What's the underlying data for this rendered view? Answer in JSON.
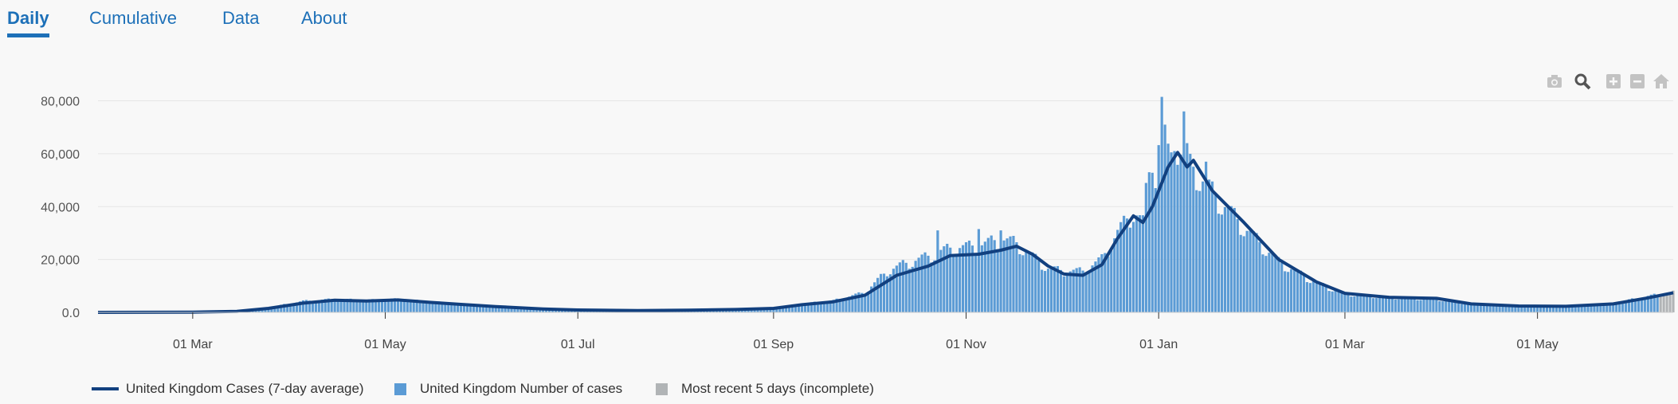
{
  "tabs": {
    "daily": "Daily",
    "cumulative": "Cumulative",
    "data": "Data",
    "about": "About"
  },
  "toolbar": [
    "camera-icon",
    "zoom-icon",
    "zoom-in-icon",
    "zoom-out-icon",
    "home-icon"
  ],
  "legend": {
    "avg": "United Kingdom Cases (7-day average)",
    "cases": "United Kingdom Number of cases",
    "recent": "Most recent 5 days (incomplete)"
  },
  "colors": {
    "avg_line": "#12407f",
    "bars": "#5b9bd5",
    "recent": "#b1b4b6",
    "tab_accent": "#1d70b8"
  },
  "chart_data": {
    "type": "bar",
    "title": "",
    "xlabel": "",
    "ylabel": "",
    "x_start": "2020-01-31",
    "x_end": "2021-06-13",
    "ylim": [
      0,
      88000
    ],
    "y_ticks": [
      {
        "value": 0,
        "label": "0.0"
      },
      {
        "value": 20000,
        "label": "20,000"
      },
      {
        "value": 40000,
        "label": "40,000"
      },
      {
        "value": 60000,
        "label": "60,000"
      },
      {
        "value": 80000,
        "label": "80,000"
      }
    ],
    "x_ticks": [
      {
        "date": "2020-03-01",
        "label": "01 Mar"
      },
      {
        "date": "2020-05-01",
        "label": "01 May"
      },
      {
        "date": "2020-07-01",
        "label": "01 Jul"
      },
      {
        "date": "2020-09-01",
        "label": "01 Sep"
      },
      {
        "date": "2020-11-01",
        "label": "01 Nov"
      },
      {
        "date": "2021-01-01",
        "label": "01 Jan"
      },
      {
        "date": "2021-03-01",
        "label": "01 Mar"
      },
      {
        "date": "2021-05-01",
        "label": "01 May"
      }
    ],
    "grid": true,
    "legend_position": "bottom-left",
    "incomplete_days": 5,
    "series": [
      {
        "name": "United Kingdom Cases (7-day average)",
        "type": "line",
        "points": [
          [
            "2020-01-31",
            0
          ],
          [
            "2020-03-01",
            50
          ],
          [
            "2020-03-15",
            400
          ],
          [
            "2020-03-25",
            1500
          ],
          [
            "2020-04-05",
            3500
          ],
          [
            "2020-04-15",
            4600
          ],
          [
            "2020-04-25",
            4300
          ],
          [
            "2020-05-05",
            4700
          ],
          [
            "2020-05-15",
            3800
          ],
          [
            "2020-05-25",
            3000
          ],
          [
            "2020-06-05",
            2200
          ],
          [
            "2020-06-20",
            1300
          ],
          [
            "2020-07-01",
            900
          ],
          [
            "2020-07-20",
            650
          ],
          [
            "2020-08-05",
            800
          ],
          [
            "2020-08-20",
            1100
          ],
          [
            "2020-09-01",
            1500
          ],
          [
            "2020-09-10",
            2900
          ],
          [
            "2020-09-20",
            4000
          ],
          [
            "2020-09-30",
            6500
          ],
          [
            "2020-10-10",
            14000
          ],
          [
            "2020-10-20",
            17500
          ],
          [
            "2020-10-27",
            21500
          ],
          [
            "2020-11-05",
            22000
          ],
          [
            "2020-11-12",
            23500
          ],
          [
            "2020-11-17",
            25000
          ],
          [
            "2020-11-22",
            22000
          ],
          [
            "2020-11-27",
            17500
          ],
          [
            "2020-12-02",
            14500
          ],
          [
            "2020-12-08",
            14000
          ],
          [
            "2020-12-14",
            18000
          ],
          [
            "2020-12-19",
            28000
          ],
          [
            "2020-12-24",
            36500
          ],
          [
            "2020-12-27",
            34000
          ],
          [
            "2020-12-30",
            40000
          ],
          [
            "2021-01-04",
            55000
          ],
          [
            "2021-01-07",
            60500
          ],
          [
            "2021-01-10",
            55000
          ],
          [
            "2021-01-12",
            57500
          ],
          [
            "2021-01-18",
            46000
          ],
          [
            "2021-01-28",
            34000
          ],
          [
            "2021-02-08",
            20000
          ],
          [
            "2021-02-20",
            11500
          ],
          [
            "2021-03-01",
            7200
          ],
          [
            "2021-03-15",
            5700
          ],
          [
            "2021-03-30",
            5300
          ],
          [
            "2021-04-10",
            3200
          ],
          [
            "2021-04-25",
            2400
          ],
          [
            "2021-05-10",
            2300
          ],
          [
            "2021-05-25",
            3200
          ],
          [
            "2021-06-05",
            5500
          ],
          [
            "2021-06-13",
            7400
          ]
        ]
      },
      {
        "name": "United Kingdom Number of cases",
        "type": "bar",
        "daily_envelope": [
          [
            "2020-01-31",
            0
          ],
          [
            "2020-03-01",
            70
          ],
          [
            "2020-03-15",
            500
          ],
          [
            "2020-03-25",
            1800
          ],
          [
            "2020-04-05",
            4200
          ],
          [
            "2020-04-15",
            4900
          ],
          [
            "2020-04-25",
            4500
          ],
          [
            "2020-05-05",
            4900
          ],
          [
            "2020-05-15",
            4000
          ],
          [
            "2020-05-25",
            3200
          ],
          [
            "2020-06-05",
            2300
          ],
          [
            "2020-06-20",
            1350
          ],
          [
            "2020-07-01",
            900
          ],
          [
            "2020-07-20",
            650
          ],
          [
            "2020-08-05",
            850
          ],
          [
            "2020-08-20",
            1150
          ],
          [
            "2020-09-01",
            1600
          ],
          [
            "2020-09-10",
            3200
          ],
          [
            "2020-09-20",
            4400
          ],
          [
            "2020-09-30",
            7500
          ],
          [
            "2020-10-07",
            15500
          ],
          [
            "2020-10-12",
            18000
          ],
          [
            "2020-10-20",
            21000
          ],
          [
            "2020-10-27",
            24000
          ],
          [
            "2020-11-05",
            25000
          ],
          [
            "2020-11-12",
            27500
          ],
          [
            "2020-11-17",
            26000
          ],
          [
            "2020-11-22",
            21000
          ],
          [
            "2020-11-27",
            16500
          ],
          [
            "2020-12-02",
            15500
          ],
          [
            "2020-12-08",
            15500
          ],
          [
            "2020-12-14",
            20000
          ],
          [
            "2020-12-19",
            30000
          ],
          [
            "2020-12-24",
            38000
          ],
          [
            "2020-12-27",
            34000
          ],
          [
            "2020-12-29",
            55000
          ],
          [
            "2020-12-31",
            65000
          ],
          [
            "2021-01-04",
            58000
          ],
          [
            "2021-01-07",
            62000
          ],
          [
            "2021-01-10",
            55000
          ],
          [
            "2021-01-12",
            54000
          ],
          [
            "2021-01-18",
            45000
          ],
          [
            "2021-01-28",
            32000
          ],
          [
            "2021-02-08",
            19000
          ],
          [
            "2021-02-20",
            11000
          ],
          [
            "2021-03-01",
            7000
          ],
          [
            "2021-03-15",
            5600
          ],
          [
            "2021-03-30",
            5000
          ],
          [
            "2021-04-10",
            3000
          ],
          [
            "2021-04-25",
            2300
          ],
          [
            "2021-05-10",
            2300
          ],
          [
            "2021-05-25",
            3400
          ],
          [
            "2021-06-05",
            6000
          ],
          [
            "2021-06-13",
            7600
          ]
        ],
        "notable_days": [
          [
            "2020-10-23",
            31000
          ],
          [
            "2020-11-05",
            31500
          ],
          [
            "2020-11-12",
            31000
          ],
          [
            "2020-12-29",
            53000
          ],
          [
            "2020-12-31",
            47000
          ],
          [
            "2021-01-02",
            81500
          ],
          [
            "2021-01-03",
            71000
          ],
          [
            "2021-01-06",
            61000
          ],
          [
            "2021-01-09",
            76000
          ],
          [
            "2021-01-10",
            64000
          ],
          [
            "2021-01-16",
            57000
          ]
        ]
      }
    ]
  }
}
